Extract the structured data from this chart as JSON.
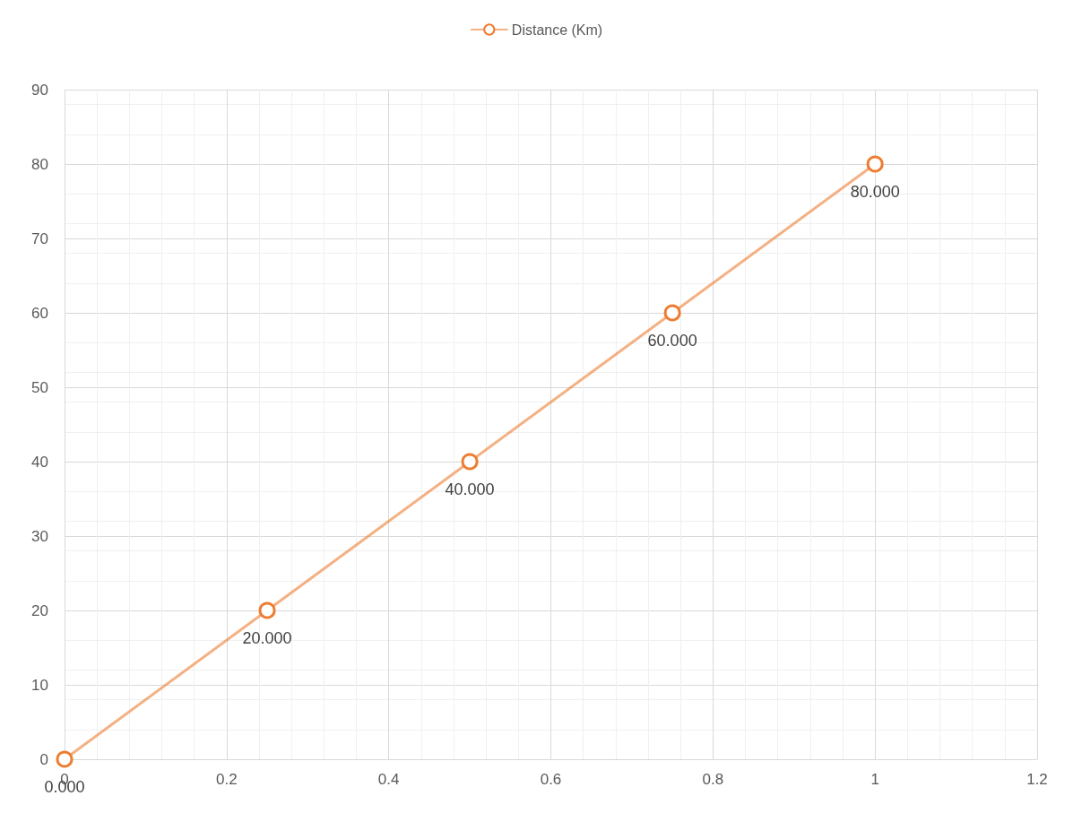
{
  "chart_data": {
    "type": "line",
    "x": [
      0,
      0.25,
      0.5,
      0.75,
      1
    ],
    "series": [
      {
        "name": "Distance (Km)",
        "color": "#ed7d31",
        "values": [
          0,
          20,
          40,
          60,
          80
        ],
        "value_labels": [
          "0.000",
          "20.000",
          "40.000",
          "60.000",
          "80.000"
        ]
      }
    ],
    "xlim": [
      0,
      1.2
    ],
    "xticks": [
      0,
      0.2,
      0.4,
      0.6,
      0.8,
      1,
      1.2
    ],
    "ylim": [
      0,
      90
    ],
    "yticks": [
      0,
      10,
      20,
      30,
      40,
      50,
      60,
      70,
      80,
      90
    ],
    "grid": true,
    "legend": "top",
    "marker": "circle",
    "line_style": "solid"
  }
}
